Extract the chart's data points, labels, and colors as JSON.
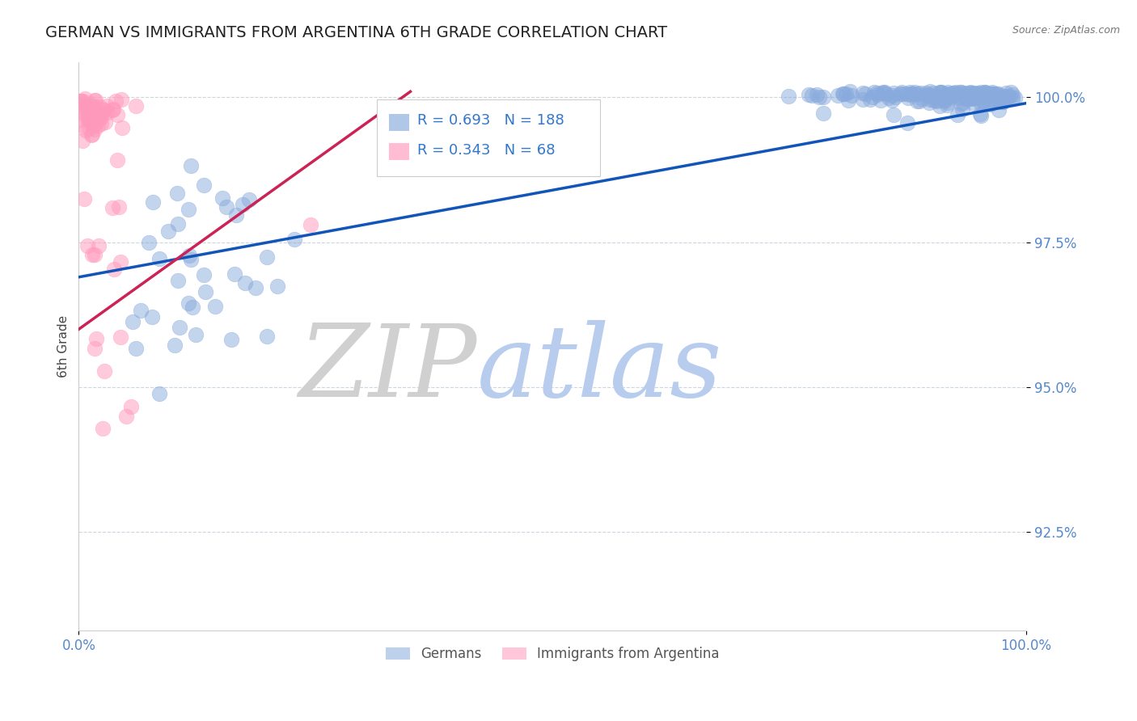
{
  "title": "GERMAN VS IMMIGRANTS FROM ARGENTINA 6TH GRADE CORRELATION CHART",
  "source": "Source: ZipAtlas.com",
  "ylabel": "6th Grade",
  "xlim": [
    0.0,
    1.0
  ],
  "ylim": [
    0.908,
    1.006
  ],
  "yticks": [
    0.925,
    0.95,
    0.975,
    1.0
  ],
  "ytick_labels": [
    "92.5%",
    "95.0%",
    "97.5%",
    "100.0%"
  ],
  "blue_R": 0.693,
  "blue_N": 188,
  "pink_R": 0.343,
  "pink_N": 68,
  "blue_color": "#88aadd",
  "pink_color": "#ff99bb",
  "blue_line_color": "#1155bb",
  "pink_line_color": "#cc2255",
  "title_fontsize": 14,
  "axis_label_color": "#444444",
  "tick_color": "#5588cc",
  "watermark_ZIP_color": "#d0d0d0",
  "watermark_atlas_color": "#b8ccee",
  "background_color": "#ffffff",
  "grid_color": "#aabbcc",
  "legend_text_color": "#3377cc",
  "legend_border_color": "#cccccc"
}
